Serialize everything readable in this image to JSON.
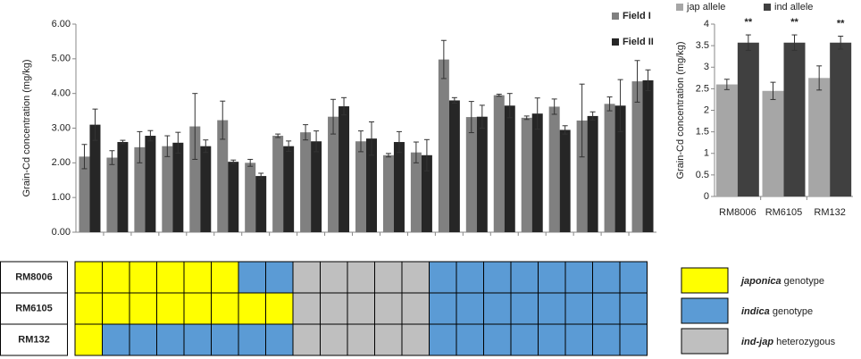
{
  "chart_data": [
    {
      "type": "bar",
      "y_label": "Grain-Cd concentration (mg/kg)",
      "categories": [
        null,
        null,
        null,
        null,
        null,
        null,
        null,
        null,
        null,
        null,
        null,
        null,
        null,
        null,
        null,
        null,
        null,
        null,
        null,
        null,
        null
      ],
      "series": [
        {
          "name": "Field I",
          "color": "#808080",
          "values": [
            2.18,
            2.15,
            2.45,
            2.48,
            3.05,
            3.23,
            2.0,
            2.78,
            2.88,
            3.33,
            2.62,
            2.22,
            2.3,
            4.98,
            3.32,
            3.95,
            3.3,
            3.62,
            3.22,
            3.7,
            4.35
          ],
          "errors": [
            0.35,
            0.2,
            0.45,
            0.3,
            0.95,
            0.55,
            0.1,
            0.05,
            0.22,
            0.5,
            0.3,
            0.05,
            0.3,
            0.55,
            0.45,
            0.03,
            0.05,
            0.22,
            1.05,
            0.2,
            0.6
          ]
        },
        {
          "name": "Field II",
          "color": "#262626",
          "values": [
            3.1,
            2.6,
            2.78,
            2.58,
            2.48,
            2.03,
            1.62,
            2.48,
            2.62,
            3.63,
            2.7,
            2.6,
            2.22,
            3.8,
            3.33,
            3.65,
            3.42,
            2.95,
            3.35,
            3.65,
            4.38
          ],
          "errors": [
            0.45,
            0.05,
            0.15,
            0.3,
            0.18,
            0.05,
            0.08,
            0.15,
            0.3,
            0.25,
            0.48,
            0.3,
            0.45,
            0.08,
            0.33,
            0.35,
            0.45,
            0.12,
            0.12,
            0.75,
            0.3
          ]
        }
      ],
      "ylim": [
        0,
        6
      ],
      "yticks": [
        {
          "value": 0,
          "label": "0.00"
        },
        {
          "value": 1,
          "label": "1.00"
        },
        {
          "value": 2,
          "label": "2.00"
        },
        {
          "value": 3,
          "label": "3.00"
        },
        {
          "value": 4,
          "label": "4.00"
        },
        {
          "value": 5,
          "label": "5.00"
        },
        {
          "value": 6,
          "label": "6.00"
        }
      ],
      "legend": "top-right"
    },
    {
      "type": "bar",
      "y_label": "Grain-Cd concentration (mg/kg)",
      "categories": [
        "RM8006",
        "RM6105",
        "RM132"
      ],
      "series": [
        {
          "name": "jap allele",
          "color": "#a6a6a6",
          "values": [
            2.6,
            2.45,
            2.75
          ],
          "errors": [
            0.12,
            0.2,
            0.28
          ]
        },
        {
          "name": "ind allele",
          "color": "#404040",
          "values": [
            3.57,
            3.57,
            3.57
          ],
          "errors": [
            0.18,
            0.18,
            0.15
          ],
          "annotations": [
            "**",
            "**",
            "**"
          ]
        }
      ],
      "ylim": [
        0,
        4
      ],
      "yticks": [
        0,
        0.5,
        1,
        1.5,
        2,
        2.5,
        3,
        3.5,
        4
      ],
      "legend": "top"
    },
    {
      "type": "genotype-grid",
      "rows": [
        "RM8006",
        "RM6105",
        "RM132"
      ],
      "legend": [
        {
          "italic": "japonica",
          "text": " genotype",
          "color": "#ffff00"
        },
        {
          "italic": "indica",
          "text": " genotype",
          "color": "#5b9bd5"
        },
        {
          "italic": "ind-jap",
          "text": " heterozygous",
          "color": "#bfbfbf"
        }
      ],
      "cells": [
        [
          0,
          0,
          0,
          0,
          0,
          0,
          1,
          1,
          2,
          2,
          2,
          2,
          2,
          1,
          1,
          1,
          1,
          1,
          1,
          1,
          1
        ],
        [
          0,
          0,
          0,
          0,
          0,
          0,
          0,
          0,
          2,
          2,
          2,
          2,
          2,
          1,
          1,
          1,
          1,
          1,
          1,
          1,
          1
        ],
        [
          0,
          1,
          1,
          1,
          1,
          1,
          1,
          1,
          2,
          2,
          2,
          2,
          2,
          1,
          1,
          1,
          1,
          1,
          1,
          1,
          1
        ]
      ]
    }
  ]
}
